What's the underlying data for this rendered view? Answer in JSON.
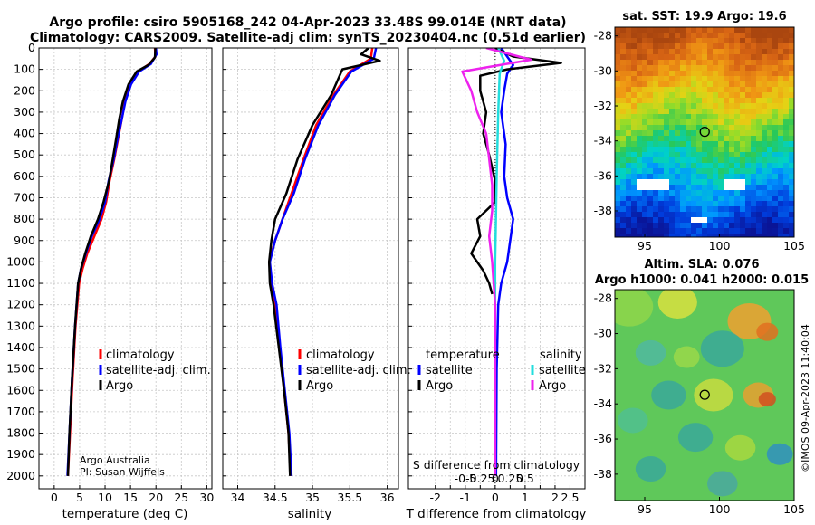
{
  "header": {
    "title_line1": "Argo profile: csiro 5905168_242 04-Apr-2023 33.48S 99.014E (NRT data)",
    "title_line2": "Climatology: CARS2009. Satellite-adj clim: synTS_20230404.nc (0.51d earlier)"
  },
  "credits": {
    "group": "Argo Australia",
    "pi": "PI: Susan Wijffels",
    "stamp": "©IMOS 09-Apr-2023 11:40:04"
  },
  "colors": {
    "climatology": "#ff0000",
    "satellite": "#0000ff",
    "argo": "#000000",
    "sat_cyan": "#22dddd",
    "argo_magenta": "#ee22ee"
  },
  "chart_data": [
    {
      "id": "temperature",
      "type": "line",
      "xlabel": "temperature (deg C)",
      "ylabel": "depth",
      "xlim": [
        -3,
        31
      ],
      "ylim": [
        2060,
        0
      ],
      "xticks": [
        0,
        5,
        10,
        15,
        20,
        25,
        30
      ],
      "yticks": [
        0,
        100,
        200,
        300,
        400,
        500,
        600,
        700,
        800,
        900,
        1000,
        1100,
        1200,
        1300,
        1400,
        1500,
        1600,
        1700,
        1800,
        1900,
        2000
      ],
      "legend": {
        "location": "lower-right",
        "entries": [
          "climatology",
          "satellite-adj. clim.",
          "Argo"
        ]
      },
      "series": [
        {
          "name": "climatology",
          "color": "#ff0000",
          "points": [
            [
              19.8,
              0
            ],
            [
              19.9,
              40
            ],
            [
              18.7,
              75
            ],
            [
              16.5,
              110
            ],
            [
              15,
              170
            ],
            [
              13.9,
              250
            ],
            [
              13.3,
              330
            ],
            [
              12.6,
              420
            ],
            [
              11.8,
              520
            ],
            [
              10.9,
              620
            ],
            [
              10.2,
              720
            ],
            [
              9.3,
              800
            ],
            [
              7.9,
              880
            ],
            [
              6.5,
              960
            ],
            [
              5.6,
              1030
            ],
            [
              4.9,
              1100
            ],
            [
              4.2,
              1300
            ],
            [
              3.6,
              1550
            ],
            [
              3.1,
              1800
            ],
            [
              2.7,
              2000
            ]
          ]
        },
        {
          "name": "satellite-adj. clim.",
          "color": "#0000ff",
          "points": [
            [
              20,
              0
            ],
            [
              20.1,
              30
            ],
            [
              19,
              75
            ],
            [
              16.7,
              110
            ],
            [
              15.1,
              170
            ],
            [
              14,
              250
            ],
            [
              13.3,
              330
            ],
            [
              12.5,
              420
            ],
            [
              11.7,
              520
            ],
            [
              10.7,
              620
            ],
            [
              10,
              720
            ],
            [
              8.9,
              800
            ],
            [
              7.4,
              880
            ],
            [
              6.2,
              960
            ],
            [
              5.3,
              1030
            ],
            [
              4.7,
              1100
            ],
            [
              4.1,
              1300
            ],
            [
              3.5,
              1550
            ],
            [
              3,
              1800
            ],
            [
              2.6,
              2000
            ]
          ]
        },
        {
          "name": "Argo",
          "color": "#000000",
          "points": [
            [
              19.9,
              0
            ],
            [
              19.8,
              45
            ],
            [
              18.5,
              80
            ],
            [
              16.2,
              110
            ],
            [
              14.6,
              170
            ],
            [
              13.5,
              250
            ],
            [
              12.8,
              330
            ],
            [
              12.2,
              420
            ],
            [
              11.5,
              520
            ],
            [
              10.8,
              620
            ],
            [
              9.7,
              720
            ],
            [
              8.6,
              800
            ],
            [
              7.2,
              880
            ],
            [
              6.1,
              960
            ],
            [
              5.3,
              1030
            ],
            [
              4.7,
              1100
            ],
            [
              4.1,
              1300
            ],
            [
              3.5,
              1550
            ],
            [
              3,
              1800
            ],
            [
              2.7,
              2000
            ]
          ]
        }
      ],
      "annotations": [
        "Argo Australia",
        "PI: Susan Wijffels"
      ]
    },
    {
      "id": "salinity",
      "type": "line",
      "xlabel": "salinity",
      "ylabel": "",
      "xlim": [
        33.8,
        36.15
      ],
      "ylim": [
        2060,
        0
      ],
      "xticks": [
        34,
        34.5,
        35,
        35.5,
        36
      ],
      "legend": {
        "location": "lower-right",
        "entries": [
          "climatology",
          "satellite-adj. clim.",
          "Argo"
        ]
      },
      "series": [
        {
          "name": "climatology",
          "color": "#ff0000",
          "points": [
            [
              35.8,
              0
            ],
            [
              35.78,
              50
            ],
            [
              35.5,
              110
            ],
            [
              35.28,
              220
            ],
            [
              35.05,
              360
            ],
            [
              34.88,
              520
            ],
            [
              34.72,
              680
            ],
            [
              34.6,
              800
            ],
            [
              34.5,
              900
            ],
            [
              34.42,
              1000
            ],
            [
              34.45,
              1100
            ],
            [
              34.5,
              1200
            ],
            [
              34.56,
              1400
            ],
            [
              34.62,
              1600
            ],
            [
              34.68,
              1800
            ],
            [
              34.71,
              2000
            ]
          ]
        },
        {
          "name": "satellite-adj. clim.",
          "color": "#0000ff",
          "points": [
            [
              35.85,
              0
            ],
            [
              35.82,
              50
            ],
            [
              35.52,
              110
            ],
            [
              35.3,
              220
            ],
            [
              35.08,
              360
            ],
            [
              34.9,
              520
            ],
            [
              34.75,
              680
            ],
            [
              34.6,
              800
            ],
            [
              34.5,
              900
            ],
            [
              34.43,
              1000
            ],
            [
              34.46,
              1100
            ],
            [
              34.52,
              1200
            ],
            [
              34.57,
              1400
            ],
            [
              34.63,
              1600
            ],
            [
              34.69,
              1800
            ],
            [
              34.72,
              2000
            ]
          ]
        },
        {
          "name": "Argo",
          "color": "#000000",
          "points": [
            [
              35.75,
              0
            ],
            [
              35.65,
              30
            ],
            [
              35.9,
              60
            ],
            [
              35.4,
              100
            ],
            [
              35.25,
              220
            ],
            [
              35,
              360
            ],
            [
              34.8,
              520
            ],
            [
              34.65,
              680
            ],
            [
              34.5,
              800
            ],
            [
              34.45,
              900
            ],
            [
              34.42,
              1000
            ],
            [
              34.43,
              1100
            ],
            [
              34.48,
              1200
            ],
            [
              34.55,
              1400
            ],
            [
              34.62,
              1600
            ],
            [
              34.68,
              1800
            ],
            [
              34.7,
              2000
            ]
          ]
        }
      ]
    },
    {
      "id": "difference",
      "type": "line",
      "xlabel": "T difference from climatology",
      "ylabel": "",
      "top_xlabel": "S difference from climatology",
      "xlim": [
        -2.9,
        3
      ],
      "ylim": [
        2060,
        0
      ],
      "xticks": [
        -2,
        -1.5,
        -1,
        -0.5,
        0,
        0.5,
        1,
        1.5,
        2,
        2.5
      ],
      "xtick_labels": [
        "-2",
        "-1.5",
        "-1",
        "-0.5",
        "0",
        "0.5",
        "1",
        "1.5",
        "2",
        "2.5"
      ],
      "s_xticks": [
        -1,
        -0.5,
        0,
        0.5,
        1
      ],
      "s_xtick_labels": [
        "-0.5",
        "-0.25",
        "0",
        "0.25",
        "0.5"
      ],
      "legend": {
        "location": "lower",
        "title_left": "temperature",
        "title_right": "salinity",
        "entries": [
          "satellite",
          "Argo"
        ]
      },
      "series": [
        {
          "name": "temperature satellite",
          "color": "#0000ff",
          "points": [
            [
              0.2,
              0
            ],
            [
              0.4,
              40
            ],
            [
              0.6,
              80
            ],
            [
              0.4,
              120
            ],
            [
              0.3,
              200
            ],
            [
              0.2,
              300
            ],
            [
              0.35,
              450
            ],
            [
              0.3,
              600
            ],
            [
              0.4,
              700
            ],
            [
              0.6,
              800
            ],
            [
              0.5,
              900
            ],
            [
              0.4,
              1000
            ],
            [
              0.2,
              1100
            ],
            [
              0.1,
              1200
            ],
            [
              0.05,
              1500
            ],
            [
              0.03,
              2000
            ]
          ]
        },
        {
          "name": "temperature Argo",
          "color": "#000000",
          "points": [
            [
              0,
              0
            ],
            [
              0.6,
              40
            ],
            [
              2.2,
              70
            ],
            [
              0.4,
              100
            ],
            [
              -0.5,
              130
            ],
            [
              -0.5,
              200
            ],
            [
              -0.3,
              300
            ],
            [
              -0.4,
              400
            ],
            [
              -0.2,
              500
            ],
            [
              0,
              620
            ],
            [
              0,
              720
            ],
            [
              -0.6,
              800
            ],
            [
              -0.5,
              880
            ],
            [
              -0.8,
              960
            ],
            [
              -0.4,
              1040
            ],
            [
              -0.2,
              1100
            ],
            [
              -0.1,
              1150
            ]
          ]
        },
        {
          "name": "salinity satellite",
          "color": "#22dddd",
          "points": [
            [
              0.1,
              0
            ],
            [
              0.3,
              60
            ],
            [
              0.15,
              120
            ],
            [
              0.1,
              300
            ],
            [
              0.05,
              600
            ],
            [
              0,
              1000
            ],
            [
              0,
              1400
            ],
            [
              0,
              2000
            ]
          ]
        },
        {
          "name": "salinity Argo",
          "color": "#ee22ee",
          "points": [
            [
              -0.3,
              0
            ],
            [
              1.2,
              55
            ],
            [
              -1.1,
              110
            ],
            [
              -0.8,
              200
            ],
            [
              -0.6,
              300
            ],
            [
              -0.3,
              400
            ],
            [
              -0.2,
              520
            ],
            [
              -0.1,
              640
            ],
            [
              -0.1,
              760
            ],
            [
              -0.2,
              880
            ],
            [
              -0.1,
              1000
            ],
            [
              0,
              1200
            ],
            [
              0,
              2000
            ]
          ]
        }
      ]
    }
  ],
  "maps": {
    "sst": {
      "title": "sat. SST: 19.9 Argo: 19.6",
      "xlim": [
        93,
        105
      ],
      "ylim": [
        -39.5,
        -27.5
      ],
      "xticks": [
        95,
        100,
        105
      ],
      "yticks": [
        -28,
        -30,
        -32,
        -34,
        -36,
        -38
      ],
      "marker": {
        "lon": 99.014,
        "lat": -33.48
      }
    },
    "sla": {
      "title_line1": "Altim. SLA: 0.076",
      "title_line2": "Argo h1000: 0.041 h2000: 0.015",
      "xlim": [
        93,
        105
      ],
      "ylim": [
        -39.5,
        -27.5
      ],
      "xticks": [
        95,
        100,
        105
      ],
      "yticks": [
        -28,
        -30,
        -32,
        -34,
        -36,
        -38
      ],
      "marker": {
        "lon": 99.014,
        "lat": -33.48
      }
    }
  }
}
